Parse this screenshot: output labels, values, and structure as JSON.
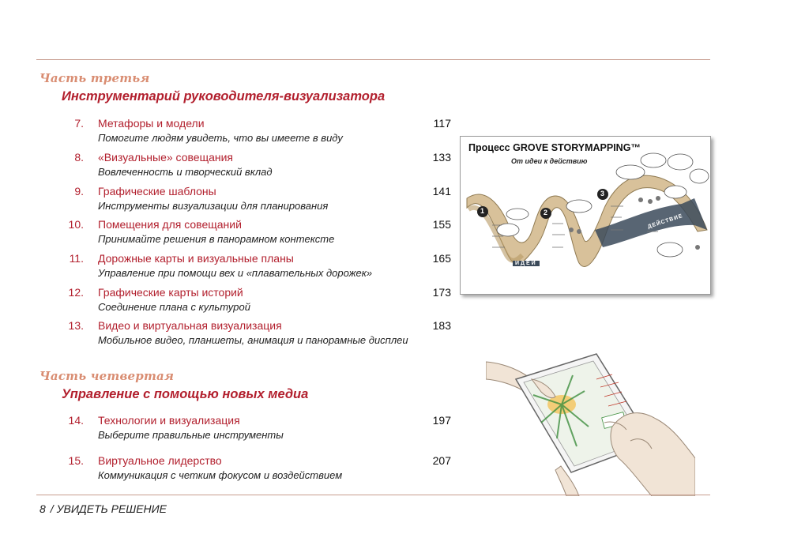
{
  "part3": {
    "label": "Часть третья",
    "title": "Инструментарий руководителя-визуализатора"
  },
  "part3_entries": [
    {
      "num": "7.",
      "title": "Метафоры и модели",
      "subtitle": "Помогите людям увидеть, что вы имеете в виду",
      "page": "117"
    },
    {
      "num": "8.",
      "title": "«Визуальные» совещания",
      "subtitle": "Вовлеченность и творческий вклад",
      "page": "133"
    },
    {
      "num": "9.",
      "title": "Графические шаблоны",
      "subtitle": "Инструменты визуализации для планирования",
      "page": "141"
    },
    {
      "num": "10.",
      "title": "Помещения для совещаний",
      "subtitle": "Принимайте решения в панорамном контексте",
      "page": "155"
    },
    {
      "num": "11.",
      "title": "Дорожные карты и визуальные планы",
      "subtitle": "Управление при помощи вех и «плавательных дорожек»",
      "page": "165"
    },
    {
      "num": "12.",
      "title": "Графические карты историй",
      "subtitle": "Соединение плана с культурой",
      "page": "173"
    },
    {
      "num": "13.",
      "title": "Видео и виртуальная визуализация",
      "subtitle": "Мобильное видео, планшеты, анимация и панорамные дисплеи",
      "page": "183"
    }
  ],
  "part4": {
    "label": "Часть четвертая",
    "title": "Управление с помощью новых медиа"
  },
  "part4_entries": [
    {
      "num": "14.",
      "title": "Технологии и визуализация",
      "subtitle": "Выберите правильные инструменты",
      "page": "197"
    },
    {
      "num": "15.",
      "title": "Виртуальное лидерство",
      "subtitle": "Коммуникация с четким фокусом и воздействием",
      "page": "207"
    }
  ],
  "storymap": {
    "title": "Процесс GROVE STORYMAPPING™",
    "subtitle": "От идеи к действию",
    "labels": {
      "ideas": "ИДЕИ",
      "action": "ДЕЙСТВИЕ"
    },
    "steps": [
      "1",
      "2",
      "3"
    ]
  },
  "footer": {
    "page_number": "8",
    "running_head": "/ УВИДЕТЬ РЕШЕНИЕ"
  },
  "colors": {
    "accent_red": "#b21f2d",
    "part_label": "#d98d72",
    "rule": "#c79c8e"
  }
}
